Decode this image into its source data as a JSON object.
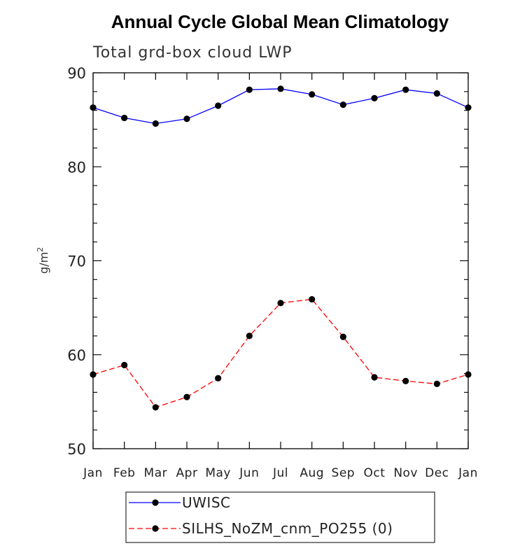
{
  "chart_data": {
    "type": "line",
    "title": "Annual Cycle Global Mean Climatology",
    "subtitle": "Total grd-box cloud LWP",
    "ylabel": "g/m",
    "ylabel_sup": "2",
    "xlabel": "",
    "categories": [
      "Jan",
      "Feb",
      "Mar",
      "Apr",
      "May",
      "Jun",
      "Jul",
      "Aug",
      "Sep",
      "Oct",
      "Nov",
      "Dec",
      "Jan"
    ],
    "ylim": [
      50,
      90
    ],
    "yticks": [
      50,
      60,
      70,
      80,
      90
    ],
    "legend_position": "bottom",
    "series": [
      {
        "name": "UWISC",
        "color": "#0000ff",
        "dash": "solid",
        "values": [
          86.3,
          85.2,
          84.6,
          85.1,
          86.5,
          88.2,
          88.3,
          87.7,
          86.6,
          87.3,
          88.2,
          87.8,
          86.3
        ]
      },
      {
        "name": "SILHS_NoZM_cnm_PO255 (0)",
        "color": "#ff0000",
        "dash": "dashed",
        "values": [
          57.9,
          58.9,
          54.4,
          55.5,
          57.5,
          62.0,
          65.5,
          65.9,
          61.9,
          57.6,
          57.2,
          56.9,
          57.9
        ]
      }
    ]
  }
}
